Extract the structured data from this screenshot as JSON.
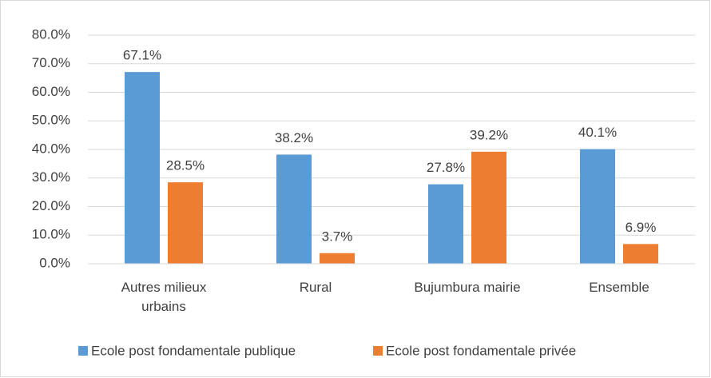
{
  "chart_data": {
    "type": "bar",
    "categories": [
      "Autres milieux urbains",
      "Rural",
      "Bujumbura mairie",
      "Ensemble"
    ],
    "series": [
      {
        "name": "Ecole post fondamentale publique",
        "color": "#5b9bd5",
        "values": [
          67.1,
          38.2,
          27.8,
          40.1
        ],
        "value_labels": [
          "67.1%",
          "38.2%",
          "27.8%",
          "40.1%"
        ]
      },
      {
        "name": "Ecole post fondamentale privée",
        "color": "#ed7d31",
        "values": [
          28.5,
          3.7,
          39.2,
          6.9
        ],
        "value_labels": [
          "28.5%",
          "3.7%",
          "39.2%",
          "6.9%"
        ]
      }
    ],
    "ylim": [
      0,
      80
    ],
    "yticks": [
      {
        "value": 0,
        "label": "0.0%"
      },
      {
        "value": 10,
        "label": "10.0%"
      },
      {
        "value": 20,
        "label": "20.0%"
      },
      {
        "value": 30,
        "label": "30.0%"
      },
      {
        "value": 40,
        "label": "40.0%"
      },
      {
        "value": 50,
        "label": "50.0%"
      },
      {
        "value": 60,
        "label": "60.0%"
      },
      {
        "value": 70,
        "label": "70.0%"
      },
      {
        "value": 80,
        "label": "80.0%"
      }
    ],
    "grid": true,
    "legend": "bottom"
  }
}
